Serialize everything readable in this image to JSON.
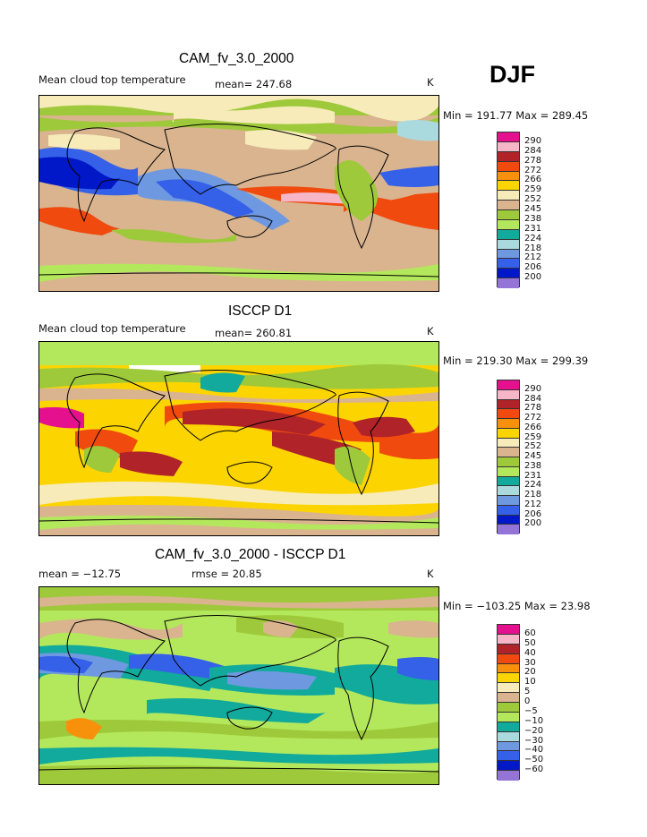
{
  "season_label": "DJF",
  "colors": {
    "abs_scale": [
      "#e5108e",
      "#f7b6c8",
      "#b02328",
      "#f04a0f",
      "#f7910c",
      "#fcd500",
      "#f7ebb9",
      "#d9b48f",
      "#9ec93a",
      "#b4e85c",
      "#12aa9c",
      "#aad9de",
      "#6e99e0",
      "#3560e8",
      "#0018c8",
      "#9574d8"
    ],
    "diff_scale": [
      "#e5108e",
      "#f7b6c8",
      "#b02328",
      "#f04a0f",
      "#f7910c",
      "#fcd500",
      "#f7ebb9",
      "#d9b48f",
      "#9ec93a",
      "#b4e85c",
      "#12aa9c",
      "#aad9de",
      "#6e99e0",
      "#3560e8",
      "#0018c8",
      "#9574d8"
    ]
  },
  "panels": [
    {
      "title": "CAM_fv_3.0_2000",
      "subtitle_left": "Mean cloud top temperature",
      "stat": "mean= 247.68",
      "units": "K",
      "range": "Min = 191.77 Max = 289.45",
      "levels": [
        "290",
        "284",
        "278",
        "272",
        "266",
        "259",
        "252",
        "245",
        "238",
        "231",
        "224",
        "218",
        "212",
        "206",
        "200"
      ]
    },
    {
      "title": "ISCCP D1",
      "subtitle_left": "Mean cloud top temperature",
      "stat": "mean= 260.81",
      "units": "K",
      "range": "Min = 219.30 Max = 299.39",
      "levels": [
        "290",
        "284",
        "278",
        "272",
        "266",
        "259",
        "252",
        "245",
        "238",
        "231",
        "224",
        "218",
        "212",
        "206",
        "200"
      ]
    },
    {
      "title": "CAM_fv_3.0_2000 - ISCCP D1",
      "subtitle_left": "mean = −12.75",
      "stat": "rmse = 20.85",
      "units": "K",
      "range": "Min = −103.25 Max = 23.98",
      "levels": [
        "60",
        "50",
        "40",
        "30",
        "20",
        "10",
        "5",
        "0",
        "−5",
        "−10",
        "−20",
        "−30",
        "−40",
        "−50",
        "−60"
      ]
    }
  ],
  "chart_data": [
    {
      "type": "heatmap",
      "title": "CAM_fv_3.0_2000",
      "subtitle": "Mean cloud top temperature",
      "units": "K",
      "mean": 247.68,
      "min": 191.77,
      "max": 289.45,
      "colorbar_levels": [
        200,
        206,
        212,
        218,
        224,
        231,
        238,
        245,
        252,
        259,
        266,
        272,
        278,
        284,
        290
      ],
      "projection": "global cylindrical equidistant map (0E to 360E)"
    },
    {
      "type": "heatmap",
      "title": "ISCCP D1",
      "subtitle": "Mean cloud top temperature",
      "units": "K",
      "mean": 260.81,
      "min": 219.3,
      "max": 299.39,
      "colorbar_levels": [
        200,
        206,
        212,
        218,
        224,
        231,
        238,
        245,
        252,
        259,
        266,
        272,
        278,
        284,
        290
      ],
      "projection": "global cylindrical equidistant map (0E to 360E)"
    },
    {
      "type": "heatmap",
      "title": "CAM_fv_3.0_2000 - ISCCP D1",
      "units": "K",
      "mean": -12.75,
      "rmse": 20.85,
      "min": -103.25,
      "max": 23.98,
      "colorbar_levels": [
        -60,
        -50,
        -40,
        -30,
        -20,
        -10,
        -5,
        0,
        5,
        10,
        20,
        30,
        40,
        50,
        60
      ],
      "projection": "global cylindrical equidistant map (0E to 360E)"
    }
  ]
}
